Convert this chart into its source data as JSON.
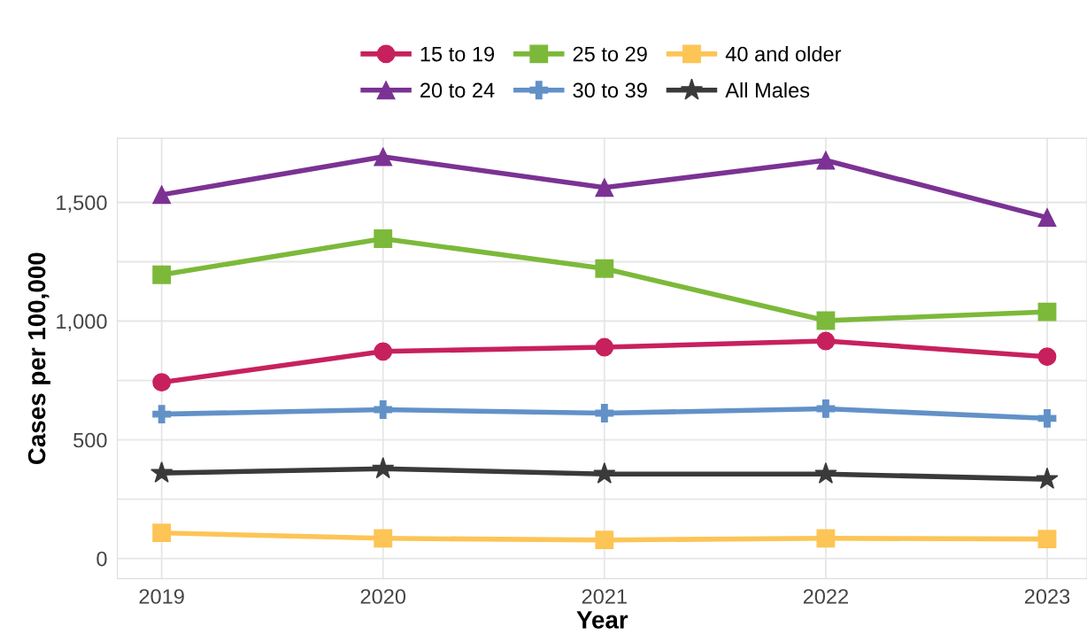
{
  "chart_data": {
    "type": "line",
    "xlabel": "Year",
    "ylabel": "Cases per 100,000",
    "x": [
      2019,
      2020,
      2021,
      2022,
      2023
    ],
    "series": [
      {
        "name": "15 to 19",
        "color": "#c7215d",
        "marker": "circle",
        "values": [
          742,
          872,
          890,
          916,
          850
        ]
      },
      {
        "name": "20 to 24",
        "color": "#7b3294",
        "marker": "triangle",
        "values": [
          1532,
          1692,
          1562,
          1677,
          1436
        ]
      },
      {
        "name": "25 to 29",
        "color": "#7cb93a",
        "marker": "square",
        "values": [
          1195,
          1347,
          1221,
          1002,
          1039
        ]
      },
      {
        "name": "30 to 39",
        "color": "#6291c8",
        "marker": "cross",
        "values": [
          608,
          627,
          612,
          631,
          590
        ]
      },
      {
        "name": "40 and older",
        "color": "#fdc456",
        "marker": "square",
        "values": [
          108,
          85,
          78,
          85,
          82
        ]
      },
      {
        "name": "All Males",
        "color": "#3a3a3a",
        "marker": "star",
        "values": [
          360,
          378,
          356,
          356,
          334
        ]
      }
    ],
    "xlim": [
      2018.8,
      2023.18
    ],
    "xticks": [
      2019,
      2020,
      2021,
      2022,
      2023
    ],
    "ylim": [
      -85,
      1770
    ],
    "yticks": [
      {
        "value": 0,
        "label": "0"
      },
      {
        "value": 250,
        "label": null
      },
      {
        "value": 500,
        "label": "500"
      },
      {
        "value": 750,
        "label": null
      },
      {
        "value": 1000,
        "label": "1,000"
      },
      {
        "value": 1250,
        "label": null
      },
      {
        "value": 1500,
        "label": "1,500"
      }
    ],
    "grid": true,
    "legend": "top",
    "line_style": "solid"
  }
}
